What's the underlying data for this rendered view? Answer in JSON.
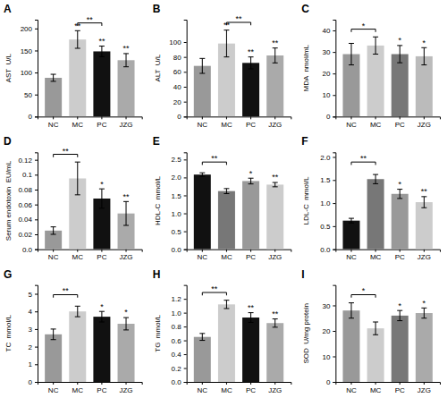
{
  "chart_data": [
    {
      "type": "bar",
      "title": "A",
      "ylabel": "AST  U/L",
      "categories": [
        "NC",
        "MC",
        "PC",
        "JZG"
      ],
      "values": [
        88,
        175,
        148,
        128
      ],
      "errors": [
        8,
        20,
        12,
        15
      ],
      "colors": [
        "#999999",
        "#cccccc",
        "#111111",
        "#aaaaaa"
      ],
      "ylim": [
        0,
        220
      ],
      "yticks": [
        0,
        50,
        100,
        150,
        200
      ],
      "annotations": [
        {
          "text": "**",
          "from": "MC",
          "to": "PC"
        },
        {
          "text": "**",
          "category": "MC"
        },
        {
          "text": "**",
          "category": "PC"
        },
        {
          "text": "**",
          "category": "JZG"
        }
      ]
    },
    {
      "type": "bar",
      "title": "B",
      "ylabel": "ALT  U/L",
      "categories": [
        "NC",
        "MC",
        "PC",
        "JZG"
      ],
      "values": [
        68,
        98,
        72,
        82
      ],
      "errors": [
        10,
        18,
        8,
        10
      ],
      "colors": [
        "#999999",
        "#cccccc",
        "#111111",
        "#aaaaaa"
      ],
      "ylim": [
        0,
        130
      ],
      "yticks": [
        0,
        20,
        40,
        60,
        80,
        100
      ],
      "annotations": [
        {
          "text": "**",
          "from": "MC",
          "to": "PC"
        },
        {
          "text": "**",
          "category": "MC"
        },
        {
          "text": "**",
          "category": "PC"
        },
        {
          "text": "**",
          "category": "JZG"
        }
      ]
    },
    {
      "type": "bar",
      "title": "C",
      "ylabel": "MDA  nmol/mL",
      "categories": [
        "NC",
        "MC",
        "PC",
        "JZG"
      ],
      "values": [
        29,
        33,
        29,
        28
      ],
      "errors": [
        5,
        4,
        4,
        4
      ],
      "colors": [
        "#999999",
        "#cccccc",
        "#777777",
        "#bbbbbb"
      ],
      "ylim": [
        0,
        45
      ],
      "yticks": [
        0,
        10,
        20,
        30,
        40
      ],
      "annotations": [
        {
          "text": "*",
          "from": "NC",
          "to": "MC"
        },
        {
          "text": "*",
          "category": "PC"
        },
        {
          "text": "*",
          "category": "JZG"
        }
      ]
    },
    {
      "type": "bar",
      "title": "D",
      "ylabel": "Serum endotoxin  EU/mL",
      "categories": [
        "NC",
        "MC",
        "PC",
        "JZG"
      ],
      "values": [
        0.025,
        0.095,
        0.068,
        0.048
      ],
      "errors": [
        0.005,
        0.022,
        0.013,
        0.016
      ],
      "colors": [
        "#999999",
        "#cccccc",
        "#111111",
        "#aaaaaa"
      ],
      "ylim": [
        0,
        0.13
      ],
      "yticks": [
        {
          "value": 0,
          "label": "0.0"
        },
        0.02,
        0.04,
        0.06,
        0.08,
        0.1,
        0.12
      ],
      "annotations": [
        {
          "text": "**",
          "from": "NC",
          "to": "MC"
        },
        {
          "text": "*",
          "category": "PC"
        },
        {
          "text": "**",
          "category": "JZG"
        }
      ]
    },
    {
      "type": "bar",
      "title": "E",
      "ylabel": "HDL-C  mmol/L",
      "categories": [
        "NC",
        "MC",
        "PC",
        "JZG"
      ],
      "values": [
        2.08,
        1.62,
        1.9,
        1.8
      ],
      "errors": [
        0.05,
        0.07,
        0.08,
        0.06
      ],
      "colors": [
        "#111111",
        "#777777",
        "#999999",
        "#cccccc"
      ],
      "ylim": [
        0.0,
        2.7
      ],
      "yticks": [
        {
          "value": 0,
          "label": "0.0"
        },
        0.5,
        {
          "value": 1,
          "label": "1.0"
        },
        1.5,
        {
          "value": 2,
          "label": "2.0"
        },
        2.5
      ],
      "annotations": [
        {
          "text": "**",
          "from": "NC",
          "to": "MC"
        },
        {
          "text": "*",
          "category": "PC"
        },
        {
          "text": "**",
          "category": "JZG"
        }
      ]
    },
    {
      "type": "bar",
      "title": "F",
      "ylabel": "LDL-C  mmol/L",
      "categories": [
        "NC",
        "MC",
        "PC",
        "JZG"
      ],
      "values": [
        0.62,
        1.52,
        1.2,
        1.02
      ],
      "errors": [
        0.05,
        0.1,
        0.1,
        0.12
      ],
      "colors": [
        "#111111",
        "#777777",
        "#999999",
        "#cccccc"
      ],
      "ylim": [
        0.0,
        2.1
      ],
      "yticks": [
        {
          "value": 0,
          "label": "0.0"
        },
        0.5,
        {
          "value": 1,
          "label": "1.0"
        },
        1.5,
        {
          "value": 2,
          "label": "2.0"
        }
      ],
      "annotations": [
        {
          "text": "**",
          "from": "NC",
          "to": "MC"
        },
        {
          "text": "*",
          "category": "PC"
        },
        {
          "text": "**",
          "category": "JZG"
        }
      ]
    },
    {
      "type": "bar",
      "title": "G",
      "ylabel": "TC  mmol/L",
      "categories": [
        "NC",
        "MC",
        "PC",
        "JZG"
      ],
      "values": [
        2.7,
        4.0,
        3.7,
        3.3
      ],
      "errors": [
        0.3,
        0.3,
        0.3,
        0.35
      ],
      "colors": [
        "#999999",
        "#cccccc",
        "#111111",
        "#aaaaaa"
      ],
      "ylim": [
        0,
        5.5
      ],
      "yticks": [
        0,
        1,
        2,
        3,
        4,
        5
      ],
      "annotations": [
        {
          "text": "**",
          "from": "NC",
          "to": "MC"
        },
        {
          "text": "*",
          "category": "PC"
        },
        {
          "text": "*",
          "category": "JZG"
        }
      ]
    },
    {
      "type": "bar",
      "title": "H",
      "ylabel": "TG  mmol/L",
      "categories": [
        "NC",
        "MC",
        "PC",
        "JZG"
      ],
      "values": [
        0.65,
        1.12,
        0.93,
        0.85
      ],
      "errors": [
        0.05,
        0.06,
        0.07,
        0.06
      ],
      "colors": [
        "#999999",
        "#cccccc",
        "#111111",
        "#aaaaaa"
      ],
      "ylim": [
        0.0,
        1.4
      ],
      "yticks": [
        {
          "value": 0,
          "label": "0.0"
        },
        0.2,
        0.4,
        0.6,
        0.8,
        {
          "value": 1,
          "label": "1.0"
        },
        1.2
      ],
      "annotations": [
        {
          "text": "**",
          "from": "NC",
          "to": "MC"
        },
        {
          "text": "**",
          "category": "PC"
        },
        {
          "text": "**",
          "category": "JZG"
        }
      ]
    },
    {
      "type": "bar",
      "title": "I",
      "ylabel": "SOD  U/mg protein",
      "categories": [
        "NC",
        "MC",
        "PC",
        "JZG"
      ],
      "values": [
        28,
        21,
        26,
        27
      ],
      "errors": [
        3,
        2.5,
        2,
        2
      ],
      "colors": [
        "#999999",
        "#cccccc",
        "#777777",
        "#aaaaaa"
      ],
      "ylim": [
        0,
        38
      ],
      "yticks": [
        0,
        10,
        20,
        30
      ],
      "annotations": [
        {
          "text": "*",
          "from": "NC",
          "to": "MC"
        },
        {
          "text": "*",
          "category": "PC"
        },
        {
          "text": "*",
          "category": "JZG"
        }
      ]
    }
  ]
}
